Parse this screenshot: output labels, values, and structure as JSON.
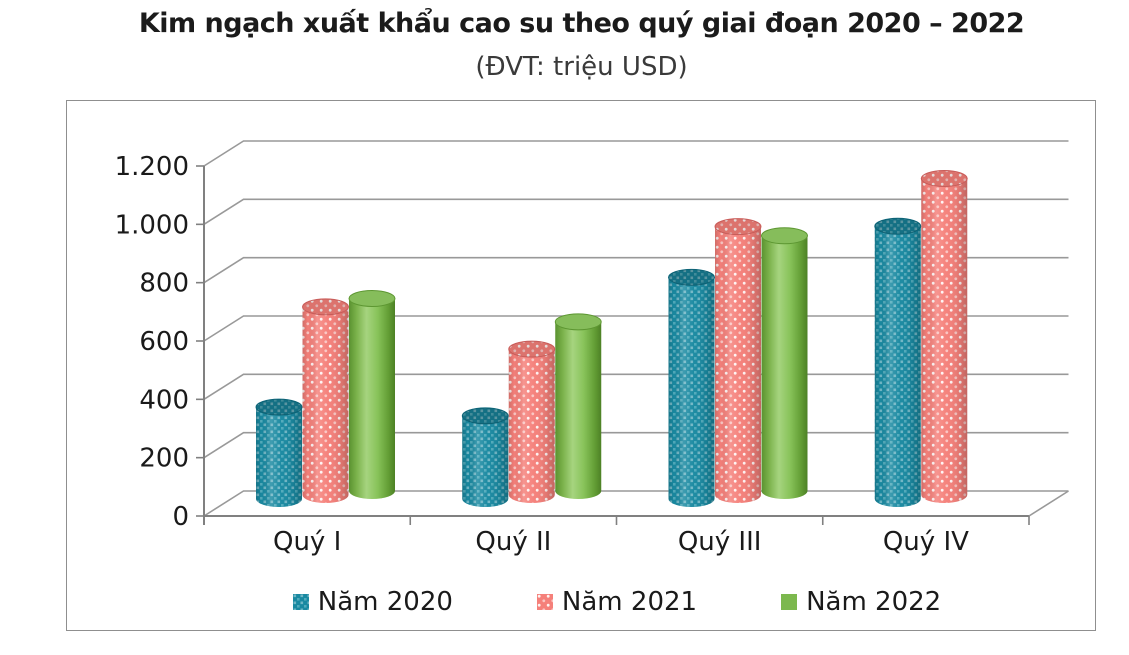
{
  "header": {
    "title": "Kim ngạch xuất khẩu cao su theo quý giai đoạn 2020 – 2022",
    "subtitle": "(ĐVT: triệu USD)"
  },
  "chart_data": {
    "type": "bar",
    "style": "3d-cylinder-clustered",
    "title": "Kim ngạch xuất khẩu cao su theo quý giai đoạn 2020 – 2022",
    "unit_label": "(ĐVT: triệu USD)",
    "categories": [
      "Quý I",
      "Quý II",
      "Quý III",
      "Quý IV"
    ],
    "series": [
      {
        "name": "Năm 2020",
        "color": "#1989A1",
        "pattern": "checker",
        "values": [
          315,
          285,
          760,
          935
        ]
      },
      {
        "name": "Năm 2021",
        "color": "#F5807A",
        "pattern": "dots",
        "values": [
          645,
          500,
          920,
          1085
        ]
      },
      {
        "name": "Năm 2022",
        "color": "#7CB84E",
        "pattern": "solid",
        "values": [
          660,
          580,
          875,
          null
        ]
      }
    ],
    "xlabel": "",
    "ylabel": "",
    "ylim": [
      0,
      1200
    ],
    "y_ticks": [
      0,
      200,
      400,
      600,
      800,
      1000,
      1200
    ],
    "y_tick_labels": [
      "0",
      "200",
      "400",
      "600",
      "800",
      "1.000",
      "1.200"
    ],
    "grid": true,
    "legend_position": "bottom",
    "colors": {
      "grid_line": "#999999",
      "axis_line": "#808080",
      "panel_border": "#8f8f8f",
      "text": "#1a1a1a"
    }
  }
}
